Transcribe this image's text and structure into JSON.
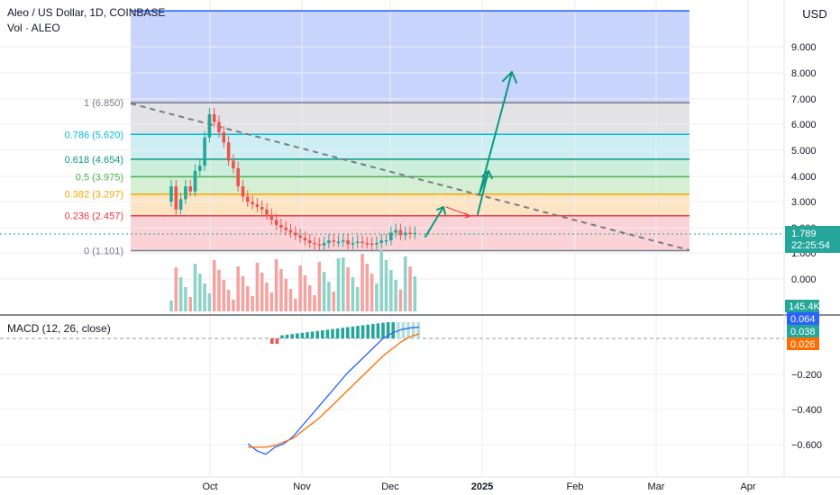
{
  "header": {
    "symbol_title": "Aleo / US Dollar, 1D, COINBASE",
    "volume_label": "Vol · ALEO",
    "macd_label": "MACD (12, 26, close)"
  },
  "price_axis": {
    "currency": "USD",
    "ticks": [
      "9.000",
      "8.000",
      "7.000",
      "6.000",
      "5.000",
      "4.000",
      "3.000",
      "2.000",
      "1.000",
      "0.000"
    ],
    "last_price": "1.789",
    "countdown": "22:25:54",
    "volume_value": "145.4K"
  },
  "macd_axis": {
    "ticks": [
      "−0.200",
      "−0.400",
      "−0.600"
    ],
    "macd_value": "0.064",
    "histogram_value": "0.038",
    "signal_value": "0.026"
  },
  "time_axis": {
    "labels": [
      "Oct",
      "Nov",
      "Dec",
      "2025",
      "Feb",
      "Mar",
      "Apr"
    ]
  },
  "fib_levels": [
    {
      "label": "1 (6.850)",
      "price": 6.85,
      "color": "#787b86"
    },
    {
      "label": "0.786 (5.620)",
      "price": 5.62,
      "color": "#00bcd4"
    },
    {
      "label": "0.618 (4.654)",
      "price": 4.654,
      "color": "#089981"
    },
    {
      "label": "0.5 (3.975)",
      "price": 3.975,
      "color": "#4caf50"
    },
    {
      "label": "0.382 (3.297)",
      "price": 3.297,
      "color": "#f7a600"
    },
    {
      "label": "0.236 (2.457)",
      "price": 2.457,
      "color": "#f23645"
    },
    {
      "label": "0 (1.101)",
      "price": 1.101,
      "color": "#787b86"
    }
  ],
  "colors": {
    "up": "#26a69a",
    "down": "#ef5350",
    "macd_line": "#2962ff",
    "signal_line": "#ff6d00",
    "projection": "#089981"
  },
  "chart_data": {
    "type": "candlestick",
    "candles_close": [
      3.6,
      2.7,
      3.1,
      3.6,
      3.4,
      4.2,
      4.4,
      5.5,
      6.4,
      6.1,
      5.7,
      5.3,
      4.6,
      4.3,
      3.6,
      3.2,
      3.0,
      2.9,
      2.8,
      2.7,
      2.5,
      2.3,
      2.1,
      2.0,
      1.9,
      1.8,
      1.7,
      1.6,
      1.5,
      1.4,
      1.35,
      1.3,
      1.4,
      1.5,
      1.45,
      1.45,
      1.5,
      1.35,
      1.4,
      1.45,
      1.4,
      1.38,
      1.35,
      1.4,
      1.5,
      1.5,
      1.8,
      1.9,
      1.7,
      1.8,
      1.75,
      1.79
    ],
    "macd": [
      -0.6,
      -0.64,
      -0.66,
      -0.62,
      -0.6,
      -0.56,
      -0.5,
      -0.44,
      -0.38,
      -0.32,
      -0.26,
      -0.2,
      -0.15,
      -0.1,
      -0.05,
      0.0,
      0.03,
      0.05,
      0.06,
      0.064
    ],
    "signal": [
      -0.62,
      -0.62,
      -0.62,
      -0.61,
      -0.59,
      -0.57,
      -0.53,
      -0.49,
      -0.45,
      -0.4,
      -0.35,
      -0.3,
      -0.25,
      -0.2,
      -0.15,
      -0.1,
      -0.06,
      -0.02,
      0.01,
      0.026
    ]
  }
}
